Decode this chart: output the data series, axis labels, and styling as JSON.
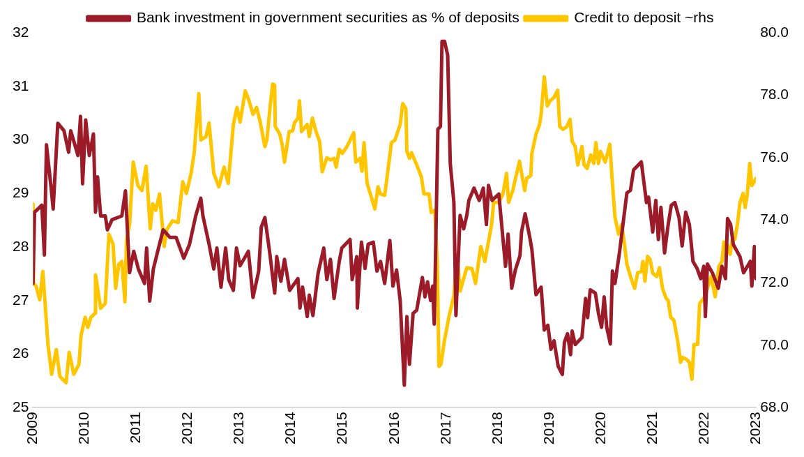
{
  "chart_data": {
    "type": "line",
    "xlim": [
      2009,
      2023
    ],
    "xticks": [
      2009,
      2010,
      2011,
      2012,
      2013,
      2014,
      2015,
      2016,
      2017,
      2018,
      2019,
      2020,
      2021,
      2022,
      2023
    ],
    "ylim": [
      25,
      32
    ],
    "yticks": [
      25,
      26,
      27,
      28,
      29,
      30,
      31,
      32
    ],
    "y2lim": [
      68,
      80
    ],
    "y2ticks": [
      {
        "value": 68,
        "label": "68.0"
      },
      {
        "value": 70,
        "label": "70.0"
      },
      {
        "value": 72,
        "label": "72.0"
      },
      {
        "value": 74,
        "label": "74.0"
      },
      {
        "value": 76,
        "label": "76.0"
      },
      {
        "value": 78,
        "label": "78.0"
      },
      {
        "value": 80,
        "label": "80.0"
      }
    ],
    "legend": "top",
    "grid": false,
    "marker": "none",
    "line_style": "solid",
    "series": [
      {
        "name": "Bank investment in government securities as % of deposits",
        "color": "#9b1c28",
        "x": [
          2009.0,
          2009.03,
          2009.17,
          2009.22,
          2009.26,
          2009.35,
          2009.39,
          2009.48,
          2009.6,
          2009.69,
          2009.73,
          2009.87,
          2009.92,
          2009.96,
          2010.02,
          2010.09,
          2010.17,
          2010.21,
          2010.25,
          2010.31,
          2010.4,
          2010.44,
          2010.53,
          2010.72,
          2010.79,
          2010.87,
          2010.95,
          2011.04,
          2011.16,
          2011.2,
          2011.26,
          2011.33,
          2011.43,
          2011.52,
          2011.65,
          2011.77,
          2011.92,
          2012.03,
          2012.15,
          2012.25,
          2012.29,
          2012.41,
          2012.5,
          2012.56,
          2012.64,
          2012.73,
          2012.79,
          2012.88,
          2012.94,
          2013.01,
          2013.17,
          2013.26,
          2013.37,
          2013.42,
          2013.49,
          2013.58,
          2013.68,
          2013.72,
          2013.8,
          2013.87,
          2013.97,
          2014.13,
          2014.17,
          2014.22,
          2014.31,
          2014.35,
          2014.42,
          2014.52,
          2014.63,
          2014.69,
          2014.76,
          2014.83,
          2014.93,
          2014.98,
          2015.14,
          2015.18,
          2015.27,
          2015.28,
          2015.36,
          2015.43,
          2015.49,
          2015.59,
          2015.66,
          2015.73,
          2015.81,
          2015.91,
          2015.97,
          2016.04,
          2016.11,
          2016.19,
          2016.24,
          2016.29,
          2016.36,
          2016.43,
          2016.54,
          2016.59,
          2016.64,
          2016.7,
          2016.74,
          2016.77,
          2016.84,
          2016.89,
          2016.92,
          2016.97,
          2017.03,
          2017.08,
          2017.15,
          2017.19,
          2017.27,
          2017.34,
          2017.4,
          2017.44,
          2017.54,
          2017.64,
          2017.72,
          2017.78,
          2017.82,
          2017.89,
          2018.02,
          2018.15,
          2018.2,
          2018.27,
          2018.34,
          2018.43,
          2018.46,
          2018.53,
          2018.62,
          2018.66,
          2018.74,
          2018.84,
          2018.9,
          2018.97,
          2019.03,
          2019.09,
          2019.17,
          2019.25,
          2019.29,
          2019.35,
          2019.41,
          2019.44,
          2019.5,
          2019.63,
          2019.7,
          2019.74,
          2019.79,
          2019.89,
          2019.95,
          2020.01,
          2020.06,
          2020.11,
          2020.18,
          2020.22,
          2020.27,
          2020.36,
          2020.5,
          2020.57,
          2020.63,
          2020.78,
          2020.82,
          2020.88,
          2020.92,
          2021.0,
          2021.06,
          2021.11,
          2021.16,
          2021.23,
          2021.3,
          2021.36,
          2021.43,
          2021.51,
          2021.57,
          2021.64,
          2021.71,
          2021.78,
          2021.86,
          2021.93,
          2021.99,
          2022.02,
          2022.06,
          2022.16,
          2022.27,
          2022.34,
          2022.41,
          2022.45,
          2022.51,
          2022.56,
          2022.69,
          2022.76,
          2022.89,
          2022.92,
          2022.97,
          2023.0
        ],
        "values": [
          27.32,
          28.65,
          28.78,
          27.85,
          29.91,
          29.11,
          28.71,
          30.31,
          30.17,
          29.77,
          30.17,
          29.71,
          30.44,
          29.18,
          30.37,
          29.71,
          30.11,
          28.65,
          29.31,
          28.58,
          28.58,
          28.32,
          28.51,
          28.58,
          29.05,
          27.52,
          27.92,
          27.59,
          27.32,
          27.98,
          26.99,
          27.59,
          27.98,
          28.32,
          28.18,
          28.18,
          27.79,
          28.05,
          28.58,
          28.91,
          28.58,
          28.05,
          27.59,
          27.98,
          27.25,
          27.98,
          27.39,
          27.19,
          27.98,
          27.65,
          27.92,
          27.06,
          27.55,
          28.37,
          28.55,
          27.92,
          27.14,
          27.82,
          27.36,
          27.77,
          27.19,
          27.41,
          26.86,
          27.25,
          26.7,
          27.1,
          26.72,
          27.51,
          27.98,
          27.39,
          27.77,
          27.04,
          27.73,
          27.98,
          28.14,
          27.39,
          27.82,
          26.86,
          28.09,
          27.6,
          28.05,
          28.09,
          27.55,
          27.73,
          27.32,
          28.12,
          27.27,
          27.57,
          27.0,
          25.42,
          26.7,
          25.81,
          26.76,
          26.82,
          27.43,
          27.07,
          27.35,
          27.0,
          27.27,
          26.56,
          30.2,
          30.25,
          31.84,
          31.84,
          31.58,
          29.56,
          28.83,
          26.72,
          28.59,
          28.34,
          28.59,
          28.87,
          29.1,
          28.87,
          29.1,
          28.42,
          29.15,
          28.87,
          28.99,
          27.64,
          28.24,
          27.23,
          27.57,
          27.84,
          28.28,
          28.62,
          28.18,
          27.96,
          27.11,
          27.25,
          26.45,
          26.54,
          26.09,
          26.25,
          25.77,
          25.62,
          26.22,
          26.38,
          25.99,
          26.43,
          26.18,
          26.31,
          27.04,
          26.68,
          27.2,
          27.14,
          26.76,
          26.5,
          27.07,
          26.5,
          26.19,
          27.55,
          27.32,
          27.92,
          29.01,
          29.06,
          29.44,
          29.59,
          29.28,
          28.83,
          28.93,
          28.28,
          28.87,
          28.14,
          28.74,
          27.89,
          28.42,
          28.78,
          28.83,
          28.55,
          28.02,
          28.65,
          28.42,
          27.73,
          27.6,
          27.41,
          27.64,
          26.7,
          27.68,
          27.51,
          27.23,
          27.64,
          27.41,
          28.53,
          28.42,
          28.05,
          27.82,
          27.52,
          27.73,
          27.27,
          28.01,
          27.41
        ]
      },
      {
        "name": "Credit to deposit ~rhs",
        "color": "#ffc600",
        "axis": "y2",
        "x": [
          2009.0,
          2009.01,
          2009.06,
          2009.13,
          2009.19,
          2009.29,
          2009.36,
          2009.45,
          2009.52,
          2009.64,
          2009.7,
          2009.79,
          2009.89,
          2009.93,
          2010.01,
          2010.06,
          2010.12,
          2010.2,
          2010.21,
          2010.31,
          2010.4,
          2010.47,
          2010.55,
          2010.6,
          2010.66,
          2010.72,
          2010.78,
          2010.81,
          2010.87,
          2010.94,
          2011.03,
          2011.11,
          2011.19,
          2011.27,
          2011.32,
          2011.38,
          2011.45,
          2011.54,
          2011.59,
          2011.7,
          2011.81,
          2011.9,
          2011.97,
          2012.06,
          2012.12,
          2012.21,
          2012.25,
          2012.35,
          2012.41,
          2012.5,
          2012.6,
          2012.7,
          2012.78,
          2012.88,
          2012.95,
          2013.01,
          2013.11,
          2013.18,
          2013.26,
          2013.33,
          2013.4,
          2013.49,
          2013.53,
          2013.59,
          2013.64,
          2013.68,
          2013.69,
          2013.78,
          2013.83,
          2013.87,
          2013.96,
          2014.03,
          2014.06,
          2014.13,
          2014.16,
          2014.2,
          2014.31,
          2014.35,
          2014.41,
          2014.48,
          2014.55,
          2014.6,
          2014.69,
          2014.76,
          2014.83,
          2014.87,
          2014.93,
          2014.99,
          2015.08,
          2015.21,
          2015.25,
          2015.33,
          2015.37,
          2015.41,
          2015.47,
          2015.53,
          2015.62,
          2015.68,
          2015.73,
          2015.81,
          2015.85,
          2015.94,
          2016.01,
          2016.11,
          2016.16,
          2016.22,
          2016.24,
          2016.29,
          2016.33,
          2016.43,
          2016.52,
          2016.57,
          2016.67,
          2016.71,
          2016.78,
          2016.83,
          2016.86,
          2016.9,
          2016.97,
          2017.06,
          2017.15,
          2017.21,
          2017.27,
          2017.4,
          2017.5,
          2017.57,
          2017.67,
          2017.75,
          2017.88,
          2017.92,
          2018.02,
          2018.1,
          2018.17,
          2018.21,
          2018.29,
          2018.42,
          2018.52,
          2018.56,
          2018.64,
          2018.66,
          2018.74,
          2018.81,
          2018.84,
          2018.9,
          2018.96,
          2019.01,
          2019.09,
          2019.16,
          2019.2,
          2019.26,
          2019.34,
          2019.4,
          2019.44,
          2019.5,
          2019.55,
          2019.63,
          2019.67,
          2019.73,
          2019.8,
          2019.86,
          2019.9,
          2019.95,
          2019.99,
          2020.08,
          2020.17,
          2020.22,
          2020.27,
          2020.34,
          2020.4,
          2020.46,
          2020.5,
          2020.57,
          2020.65,
          2020.71,
          2020.78,
          2020.81,
          2020.85,
          2020.9,
          2020.95,
          2021.0,
          2021.08,
          2021.13,
          2021.19,
          2021.26,
          2021.3,
          2021.35,
          2021.41,
          2021.48,
          2021.54,
          2021.58,
          2021.65,
          2021.71,
          2021.76,
          2021.8,
          2021.87,
          2021.91,
          2021.99,
          2022.06,
          2022.13,
          2022.21,
          2022.28,
          2022.34,
          2022.38,
          2022.44,
          2022.5,
          2022.54,
          2022.59,
          2022.64,
          2022.69,
          2022.75,
          2022.79,
          2022.83,
          2022.88,
          2022.92,
          2023.0
        ],
        "values": [
          74.52,
          71.98,
          71.89,
          71.45,
          72.36,
          70.02,
          69.07,
          69.86,
          69.0,
          68.8,
          69.77,
          69.07,
          69.39,
          70.32,
          70.89,
          70.57,
          70.89,
          71.02,
          72.25,
          71.18,
          71.34,
          73.55,
          73.23,
          71.82,
          72.59,
          72.68,
          71.39,
          73.39,
          73.86,
          75.86,
          75.11,
          74.95,
          75.73,
          73.73,
          74.52,
          74.32,
          74.84,
          73.16,
          73.7,
          73.98,
          73.93,
          75.23,
          74.86,
          75.5,
          76.14,
          78.05,
          76.57,
          76.68,
          77.11,
          75.5,
          75.07,
          75.7,
          75.18,
          77.07,
          77.61,
          77.14,
          78.14,
          77.84,
          77.39,
          77.61,
          77.14,
          76.36,
          76.59,
          77.61,
          78.36,
          78.32,
          77.0,
          76.75,
          76.36,
          75.86,
          76.84,
          76.86,
          77.11,
          77.27,
          77.82,
          76.84,
          77.07,
          76.68,
          77.27,
          76.84,
          76.52,
          75.55,
          76.0,
          75.93,
          75.98,
          75.7,
          76.27,
          76.14,
          76.36,
          76.8,
          75.86,
          75.98,
          75.57,
          76.48,
          75.18,
          74.86,
          74.36,
          75.07,
          74.84,
          74.8,
          75.3,
          76.48,
          76.57,
          77.07,
          77.73,
          77.57,
          76.2,
          75.98,
          76.16,
          75.77,
          75.39,
          74.84,
          74.84,
          74.25,
          74.32,
          72.59,
          69.32,
          69.39,
          70.18,
          70.95,
          71.59,
          72.91,
          71.73,
          72.48,
          72.45,
          71.98,
          73.16,
          72.68,
          73.86,
          74.57,
          74.57,
          74.84,
          75.5,
          74.57,
          74.95,
          75.89,
          74.95,
          75.34,
          75.43,
          76.14,
          76.75,
          77.07,
          77.39,
          78.59,
          77.66,
          77.82,
          77.93,
          78.16,
          77.0,
          76.91,
          77.0,
          77.23,
          76.52,
          76.36,
          75.77,
          76.36,
          75.77,
          75.66,
          76.09,
          75.82,
          76.48,
          75.82,
          76.2,
          75.86,
          76.43,
          75.18,
          74.09,
          73.55,
          73.86,
          73.16,
          72.59,
          72.2,
          71.82,
          72.32,
          72.36,
          72.68,
          72.05,
          72.84,
          72.75,
          72.3,
          72.2,
          72.48,
          71.82,
          71.5,
          71.43,
          70.89,
          70.8,
          70.18,
          69.45,
          69.61,
          69.55,
          69.45,
          68.91,
          70.02,
          70.02,
          71.34,
          71.5,
          71.82,
          72.2,
          71.55,
          72.52,
          72.68,
          73.3,
          73.23,
          72.91,
          73.39,
          73.39,
          73.86,
          74.57,
          74.86,
          74.41,
          74.8,
          75.82,
          75.11,
          75.34
        ]
      }
    ]
  }
}
